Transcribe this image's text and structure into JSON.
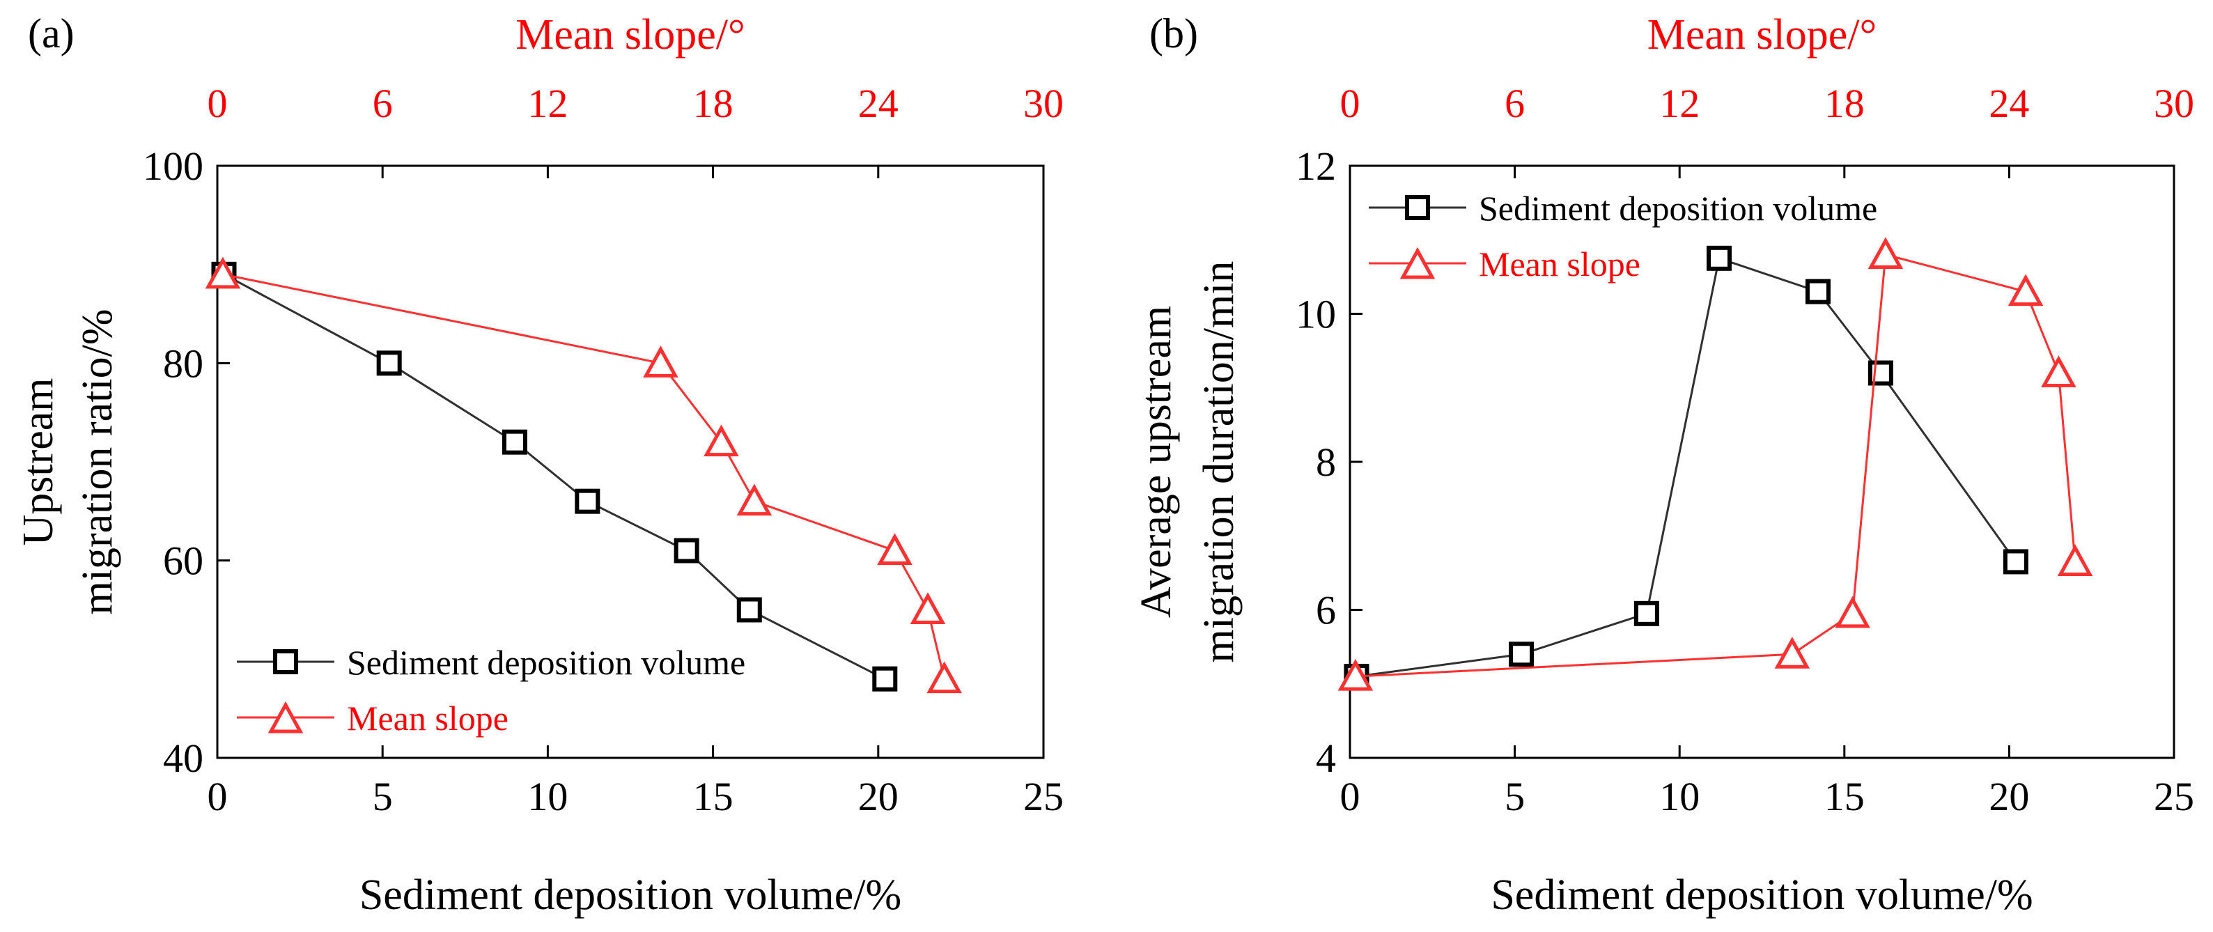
{
  "colors": {
    "black_series": "#303030",
    "red_series": "#ff3030",
    "axis": "#000000",
    "red_text": "#ff0000"
  },
  "chart_data": [
    {
      "type": "line",
      "panel_label": "(a)",
      "xlabel": "Sediment deposition volume/%",
      "ylabel_lines": [
        "Upstream",
        "migration ratio/%"
      ],
      "top_xlabel": "Mean slope/°",
      "xlim": [
        0,
        25
      ],
      "top_xlim": [
        0,
        30
      ],
      "ylim": [
        40,
        100
      ],
      "x_ticks": [
        0,
        5,
        10,
        15,
        20,
        25
      ],
      "top_ticks": [
        0,
        6,
        12,
        18,
        24,
        30
      ],
      "y_ticks": [
        40,
        60,
        80,
        100
      ],
      "legend_position": "bottom-left",
      "series": [
        {
          "name": "Sediment deposition volume",
          "axis": "bottom",
          "marker": "square",
          "color": "#303030",
          "x": [
            0.2,
            5.2,
            9.0,
            11.2,
            14.2,
            16.1,
            20.2
          ],
          "y": [
            89,
            80,
            72,
            66,
            61,
            55,
            48
          ]
        },
        {
          "name": "Mean slope",
          "axis": "top",
          "marker": "triangle",
          "color": "#ff3030",
          "x": [
            0.2,
            16.1,
            18.3,
            19.5,
            24.6,
            25.8,
            26.4
          ],
          "y": [
            89,
            80,
            72,
            66,
            61,
            55,
            48
          ]
        }
      ]
    },
    {
      "type": "line",
      "panel_label": "(b)",
      "xlabel": "Sediment deposition volume/%",
      "ylabel_lines": [
        "Average upstream",
        "migration duration/min"
      ],
      "top_xlabel": "Mean slope/°",
      "xlim": [
        0,
        25
      ],
      "top_xlim": [
        0,
        30
      ],
      "ylim": [
        4,
        12
      ],
      "x_ticks": [
        0,
        5,
        10,
        15,
        20,
        25
      ],
      "top_ticks": [
        0,
        6,
        12,
        18,
        24,
        30
      ],
      "y_ticks": [
        4,
        6,
        8,
        10,
        12
      ],
      "legend_position": "top-left",
      "series": [
        {
          "name": "Sediment deposition volume",
          "axis": "bottom",
          "marker": "square",
          "color": "#303030",
          "x": [
            0.2,
            5.2,
            9.0,
            11.2,
            14.2,
            16.1,
            20.2
          ],
          "y": [
            5.1,
            5.4,
            5.95,
            10.75,
            10.3,
            9.2,
            6.65
          ]
        },
        {
          "name": "Mean slope",
          "axis": "top",
          "marker": "triangle",
          "color": "#ff3030",
          "x": [
            0.2,
            16.1,
            18.3,
            19.5,
            24.6,
            25.8,
            26.4
          ],
          "y": [
            5.1,
            5.4,
            5.95,
            10.8,
            10.3,
            9.2,
            6.65
          ]
        }
      ]
    }
  ]
}
